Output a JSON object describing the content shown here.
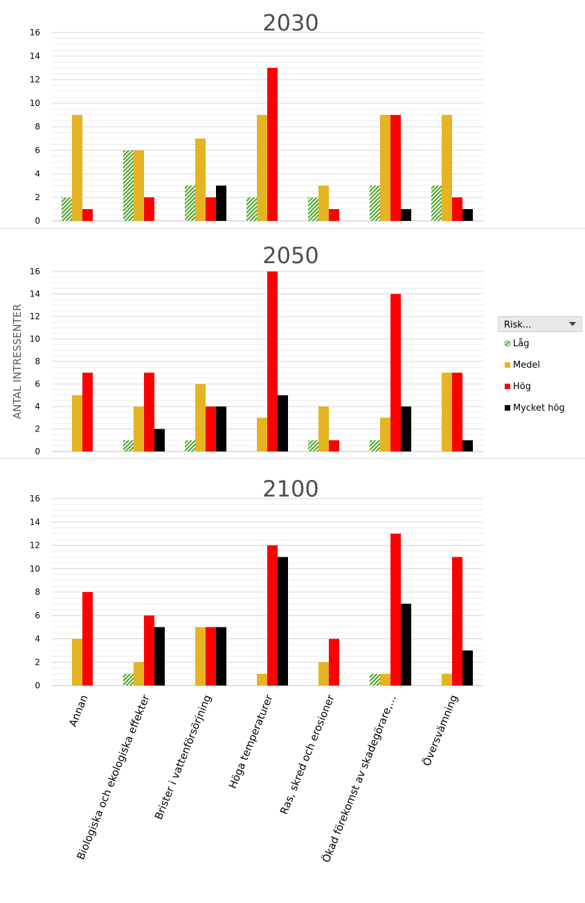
{
  "chart_data": {
    "type": "bar",
    "ylabel": "ANTAL INTRESSENTER",
    "ylim": [
      0,
      16
    ],
    "yticks": [
      0,
      2,
      4,
      6,
      8,
      10,
      12,
      14,
      16
    ],
    "grid": true,
    "legend_position": "right",
    "categories": [
      "Annan",
      "Biologiska och ekologiska effekter",
      "Brister i vattenförsörjning",
      "Höga temperaturer",
      "Ras, skred och erosioner",
      "Ökad förekomst av skadegörare,…",
      "Översvämning"
    ],
    "legend": {
      "title": "Risk...",
      "dropdown_icon": "dropdown-arrow-icon",
      "items": [
        {
          "name": "Låg",
          "color": "#4fa82a",
          "pattern": "diagonal-hatch"
        },
        {
          "name": "Medel",
          "color": "#e6b422"
        },
        {
          "name": "Hög",
          "color": "#ff0000"
        },
        {
          "name": "Mycket hög",
          "color": "#000000"
        }
      ]
    },
    "panels": [
      {
        "title": "2030",
        "series": [
          {
            "name": "Låg",
            "values": [
              2,
              6,
              3,
              2,
              2,
              3,
              3
            ]
          },
          {
            "name": "Medel",
            "values": [
              9,
              6,
              7,
              9,
              3,
              9,
              9
            ]
          },
          {
            "name": "Hög",
            "values": [
              1,
              2,
              2,
              13,
              1,
              9,
              2
            ]
          },
          {
            "name": "Mycket hög",
            "values": [
              0,
              0,
              3,
              0,
              0,
              1,
              1
            ]
          }
        ]
      },
      {
        "title": "2050",
        "series": [
          {
            "name": "Låg",
            "values": [
              0,
              1,
              1,
              0,
              1,
              1,
              0
            ]
          },
          {
            "name": "Medel",
            "values": [
              5,
              4,
              6,
              3,
              4,
              3,
              7
            ]
          },
          {
            "name": "Hög",
            "values": [
              7,
              7,
              4,
              16,
              1,
              14,
              7
            ]
          },
          {
            "name": "Mycket hög",
            "values": [
              0,
              2,
              4,
              5,
              0,
              4,
              1
            ]
          }
        ]
      },
      {
        "title": "2100",
        "series": [
          {
            "name": "Låg",
            "values": [
              0,
              1,
              0,
              0,
              0,
              1,
              0
            ]
          },
          {
            "name": "Medel",
            "values": [
              4,
              2,
              5,
              1,
              2,
              1,
              1
            ]
          },
          {
            "name": "Hög",
            "values": [
              8,
              6,
              5,
              12,
              4,
              13,
              11
            ]
          },
          {
            "name": "Mycket hög",
            "values": [
              0,
              5,
              5,
              11,
              0,
              7,
              3
            ]
          }
        ]
      }
    ]
  }
}
